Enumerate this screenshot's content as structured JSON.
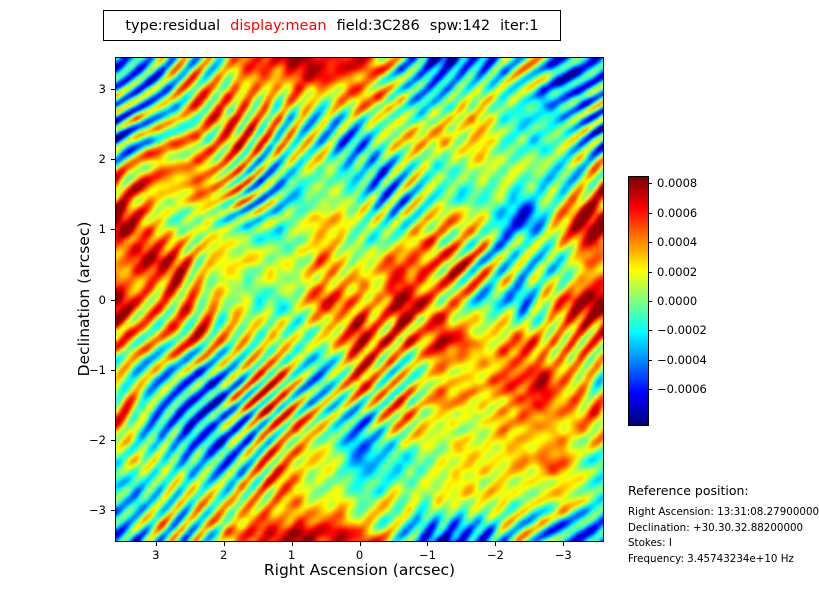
{
  "title": {
    "part1": "type:residual",
    "part2": "display:mean",
    "part3": "field:3C286",
    "part4": "spw:142",
    "part5": "iter:1",
    "highlight_color": "#ff0000"
  },
  "axes": {
    "xlabel": "Right Ascension (arcsec)",
    "ylabel": "Declination (arcsec)"
  },
  "reference": {
    "heading": "Reference position:",
    "lines": [
      "Right Ascension: 13:31:08.27900000",
      "Declination: +30.30.32.88200000",
      "Stokes: I",
      "Frequency: 3.45743234e+10 Hz"
    ]
  },
  "chart_data": {
    "type": "heatmap",
    "title": "type:residual display:mean field:3C286 spw:142 iter:1",
    "xlabel": "Right Ascension (arcsec)",
    "ylabel": "Declination (arcsec)",
    "xlim": [
      3.6,
      -3.6
    ],
    "ylim": [
      -3.45,
      3.45
    ],
    "x_ticks": [
      3,
      2,
      1,
      0,
      -1,
      -2,
      -3
    ],
    "y_ticks": [
      3,
      2,
      1,
      0,
      -1,
      -2,
      -3
    ],
    "x_tick_labels": [
      "3",
      "2",
      "1",
      "0",
      "−1",
      "−2",
      "−3"
    ],
    "y_tick_labels": [
      "3",
      "2",
      "1",
      "0",
      "−1",
      "−2",
      "−3"
    ],
    "grid": false,
    "colormap": "jet",
    "colorbar": {
      "position": "right",
      "vmin": -0.00085,
      "vmax": 0.00085,
      "tick_values": [
        0.0008,
        0.0006,
        0.0004,
        0.0002,
        0.0,
        -0.0002,
        -0.0004,
        -0.0006
      ],
      "tick_labels": [
        "0.0008",
        "0.0006",
        "0.0004",
        "0.0002",
        "0.0000",
        "−0.0002",
        "−0.0004",
        "−0.0006"
      ]
    },
    "description": "Interferometric residual noise image of field 3C286: random low-level noise centered near 0.0000 (green background) with diagonal corrugated stripes running from lower-left to upper-right; stripe crests reach +0.0004 to +0.0008 (orange/red) and troughs reach −0.0004 to −0.0007 (blue/dark blue).",
    "noise": {
      "seed": 1234,
      "octaves": [
        [
          6,
          0.45
        ],
        [
          12,
          0.3
        ],
        [
          24,
          0.18
        ],
        [
          48,
          0.12
        ]
      ],
      "stripe_freq": 0.48,
      "stripe_amp": 0.5,
      "base_level": 0.55,
      "contrast": 0.36
    }
  }
}
